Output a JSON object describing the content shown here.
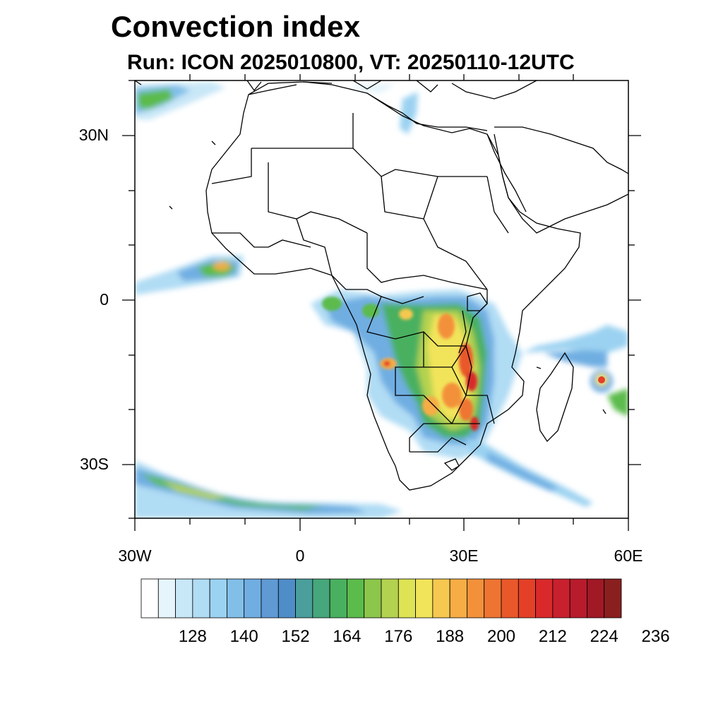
{
  "title": "Convection index",
  "subtitle": "Run: ICON 2025010800,  VT: 20250110-12UTC",
  "axes": {
    "lat_labels": [
      "30N",
      "0",
      "30S"
    ],
    "lon_labels": [
      "30W",
      "0",
      "30E",
      "60E"
    ]
  },
  "colorbar": {
    "labels": [
      "128",
      "140",
      "152",
      "164",
      "176",
      "188",
      "200",
      "212",
      "224",
      "236"
    ],
    "colors": [
      "#ffffff",
      "#e6f4fb",
      "#c8e7f7",
      "#b0dcf4",
      "#9bd2f1",
      "#82bfe8",
      "#70aee2",
      "#5f9ad4",
      "#4f8dc9",
      "#4a9e9c",
      "#45a77b",
      "#49b060",
      "#5bbb4b",
      "#8cc64b",
      "#b3d250",
      "#dde354",
      "#f2e45a",
      "#f6c84f",
      "#f6ad45",
      "#f3913a",
      "#ee7431",
      "#e9582a",
      "#e34027",
      "#d9292b",
      "#c9202e",
      "#b81b2c",
      "#a01925",
      "#8a1f1f"
    ]
  }
}
